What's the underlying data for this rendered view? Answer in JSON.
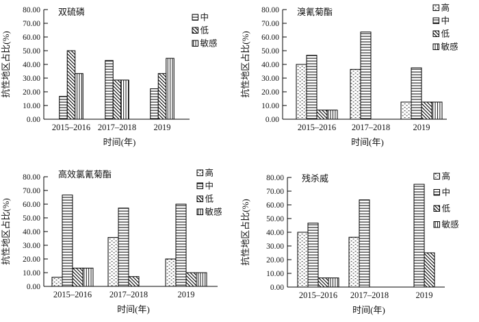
{
  "figure": {
    "background": "#ffffff",
    "text_color": "#111111",
    "line_color": "#000000",
    "axis": {
      "ylabel": "抗性地区占比(%)",
      "xlabel": "时间(年)",
      "ylim": [
        0,
        80
      ],
      "ytick_step": 10,
      "ytick_labels": [
        "0.00",
        "10.00",
        "20.00",
        "30.00",
        "40.00",
        "50.00",
        "60.00",
        "70.00",
        "80.00"
      ],
      "categories": [
        "2015–2016",
        "2017–2018",
        "2019"
      ],
      "grid": false
    },
    "pattern_legend_note": {
      "dots": "高",
      "horizontal-lines": "中",
      "diagonal-lines": "低",
      "vertical-lines": "敏感"
    }
  },
  "chart_data": [
    {
      "type": "bar",
      "title": "双硫磷",
      "position": "top-left",
      "xlabel": "时间(年)",
      "ylabel": "抗性地区占比(%)",
      "ylim": [
        0,
        80
      ],
      "legend_position": "top-right",
      "categories": [
        "2015–2016",
        "2017–2018",
        "2019"
      ],
      "series": [
        {
          "name": "中",
          "pattern": "horizontal-lines",
          "values": [
            16.67,
            42.86,
            22.22
          ]
        },
        {
          "name": "低",
          "pattern": "diagonal-lines",
          "values": [
            50.0,
            28.57,
            33.33
          ]
        },
        {
          "name": "敏感",
          "pattern": "vertical-lines",
          "values": [
            33.33,
            28.57,
            44.44
          ]
        }
      ]
    },
    {
      "type": "bar",
      "title": "溴氰菊酯",
      "position": "top-right",
      "xlabel": "时间(年)",
      "ylabel": "抗性地区占比(%)",
      "ylim": [
        0,
        80
      ],
      "legend_position": "top-right",
      "categories": [
        "2015–2016",
        "2017–2018",
        "2019"
      ],
      "series": [
        {
          "name": "高",
          "pattern": "dots",
          "values": [
            40.0,
            36.36,
            12.5
          ]
        },
        {
          "name": "中",
          "pattern": "horizontal-lines",
          "values": [
            46.67,
            63.64,
            37.5
          ]
        },
        {
          "name": "低",
          "pattern": "diagonal-lines",
          "values": [
            6.67,
            0,
            12.5
          ]
        },
        {
          "name": "敏感",
          "pattern": "vertical-lines",
          "values": [
            6.67,
            0,
            12.5
          ]
        }
      ]
    },
    {
      "type": "bar",
      "title": "高效氯氰菊酯",
      "position": "bottom-left",
      "xlabel": "时间(年)",
      "ylabel": "抗性地区占比(%)",
      "ylim": [
        0,
        80
      ],
      "legend_position": "top-right",
      "categories": [
        "2015–2016",
        "2017–2018",
        "2019"
      ],
      "series": [
        {
          "name": "高",
          "pattern": "dots",
          "values": [
            6.67,
            35.71,
            20.0
          ]
        },
        {
          "name": "中",
          "pattern": "horizontal-lines",
          "values": [
            66.67,
            57.14,
            60.0
          ]
        },
        {
          "name": "低",
          "pattern": "diagonal-lines",
          "values": [
            13.33,
            7.14,
            10.0
          ]
        },
        {
          "name": "敏感",
          "pattern": "vertical-lines",
          "values": [
            13.33,
            0,
            10.0
          ]
        }
      ]
    },
    {
      "type": "bar",
      "title": "残杀威",
      "position": "bottom-right",
      "xlabel": "时间(年)",
      "ylabel": "抗性地区占比(%)",
      "ylim": [
        0,
        80
      ],
      "legend_position": "top-right",
      "categories": [
        "2015–2016",
        "2017–2018",
        "2019"
      ],
      "series": [
        {
          "name": "高",
          "pattern": "dots",
          "values": [
            40.0,
            36.36,
            0
          ]
        },
        {
          "name": "中",
          "pattern": "horizontal-lines",
          "values": [
            46.67,
            63.64,
            75.0
          ]
        },
        {
          "name": "低",
          "pattern": "diagonal-lines",
          "values": [
            6.67,
            0,
            25.0
          ]
        },
        {
          "name": "敏感",
          "pattern": "vertical-lines",
          "values": [
            6.67,
            0,
            0
          ]
        }
      ]
    }
  ]
}
